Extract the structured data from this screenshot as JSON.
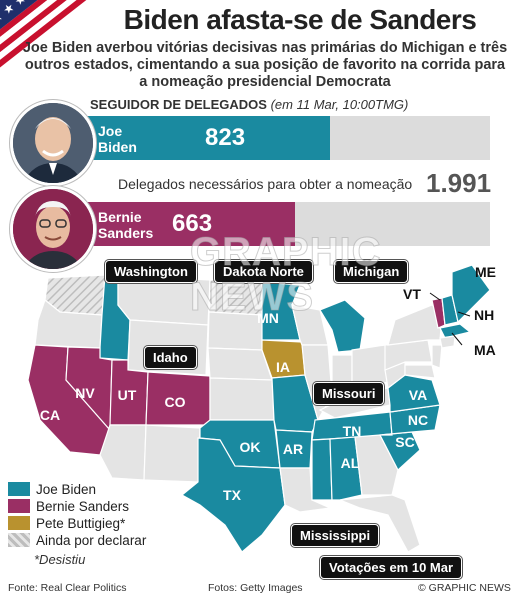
{
  "title": "Biden afasta-se de Sanders",
  "subtitle": "Joe Biden averbou vitórias decisivas nas primárias do Michigan e três outros estados, cimentando a sua posição de favorito na corrida para a nomeação presidencial Democrata",
  "tracker": {
    "label": "SEGUIDOR DE DELEGADOS",
    "date": "(em 11 Mar, 10:00TMG)",
    "max": 1991,
    "candidates": [
      {
        "name": "Joe Biden",
        "value": 823,
        "color": "#1a8aa0"
      },
      {
        "name": "Bernie Sanders",
        "value": 663,
        "color": "#9a2f64"
      }
    ],
    "needed_label": "Delegados necessários para obter a nomeação",
    "needed_value": "1.991"
  },
  "map": {
    "colors": {
      "biden": "#1a8aa0",
      "sanders": "#9a2f64",
      "buttigieg": "#b9922f",
      "undeclared": "#cfcfcf",
      "none": "#e4e4e4"
    },
    "state_labels": {
      "ca": "CA",
      "nv": "NV",
      "ut": "UT",
      "co": "CO",
      "mn": "MN",
      "ia": "IA",
      "ok": "OK",
      "ar": "AR",
      "tx": "TX",
      "tn": "TN",
      "al": "AL",
      "sc": "SC",
      "nc": "NC",
      "va": "VA",
      "me": "ME",
      "vt": "VT",
      "nh": "NH",
      "ma": "MA"
    },
    "callouts": {
      "washington": "Washington",
      "dakota": "Dakota Norte",
      "michigan": "Michigan",
      "idaho": "Idaho",
      "missouri": "Missouri",
      "mississippi": "Mississippi",
      "votes": "Votações em 10 Mar"
    }
  },
  "legend": {
    "items": [
      {
        "label": "Joe Biden",
        "color": "#1a8aa0"
      },
      {
        "label": "Bernie Sanders",
        "color": "#9a2f64"
      },
      {
        "label": "Pete Buttigieg*",
        "color": "#b9922f"
      },
      {
        "label": "Ainda por declarar",
        "color": "#cfcfcf"
      }
    ],
    "note": "*Desistiu"
  },
  "footer": {
    "source": "Fonte: Real Clear Politics",
    "photos": "Fotos: Getty Images",
    "credit": "© GRAPHIC NEWS"
  },
  "watermark": "GRAPHIC NEWS"
}
